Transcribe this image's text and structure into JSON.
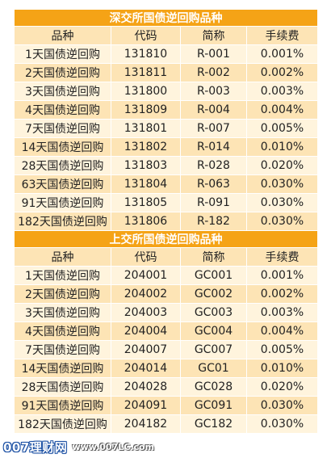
{
  "sections": [
    {
      "title": "深交所国债逆回购品种",
      "headers": [
        "品种",
        "代码",
        "简称",
        "手续费"
      ],
      "rows": [
        [
          "1天国债逆回购",
          "131810",
          "R-001",
          "0.001%"
        ],
        [
          "2天国债逆回购",
          "131811",
          "R-002",
          "0.002%"
        ],
        [
          "3天国债逆回购",
          "131800",
          "R-003",
          "0.003%"
        ],
        [
          "4天国债逆回购",
          "131809",
          "R-004",
          "0.004%"
        ],
        [
          "7天国债逆回购",
          "131801",
          "R-007",
          "0.005%"
        ],
        [
          "14天国债逆回购",
          "131802",
          "R-014",
          "0.010%"
        ],
        [
          "28天国债逆回购",
          "131803",
          "R-028",
          "0.020%"
        ],
        [
          "63天国债逆回购",
          "131804",
          "R-063",
          "0.030%"
        ],
        [
          "91天国债逆回购",
          "131805",
          "R-091",
          "0.030%"
        ],
        [
          "182天国债逆回购",
          "131806",
          "R-182",
          "0.030%"
        ]
      ]
    },
    {
      "title": "上交所国债逆回购品种",
      "headers": [
        "品种",
        "代码",
        "简称",
        "手续费"
      ],
      "rows": [
        [
          "1天国债逆回购",
          "204001",
          "GC001",
          "0.001%"
        ],
        [
          "2天国债逆回购",
          "204002",
          "GC002",
          "0.002%"
        ],
        [
          "3天国债逆回购",
          "204003",
          "GC003",
          "0.003%"
        ],
        [
          "4天国债逆回购",
          "204004",
          "GC004",
          "0.004%"
        ],
        [
          "7天国债逆回购",
          "204007",
          "GC007",
          "0.005%"
        ],
        [
          "14天国债逆回购",
          "204014",
          "GC01",
          "0.010%"
        ],
        [
          "28天国债逆回购",
          "204028",
          "GC028",
          "0.020%"
        ],
        [
          "91天国债逆回购",
          "204091",
          "GC091",
          "0.030%"
        ],
        [
          "182天国债逆回购",
          "204182",
          "GC182",
          "0.030%"
        ]
      ]
    }
  ],
  "watermark": {
    "brand": "007理财网",
    "url": "www.007LC.com"
  },
  "colors": {
    "title_bg": "#f5a316",
    "row_a": "#fde4b5",
    "row_b": "#fff4dd"
  }
}
